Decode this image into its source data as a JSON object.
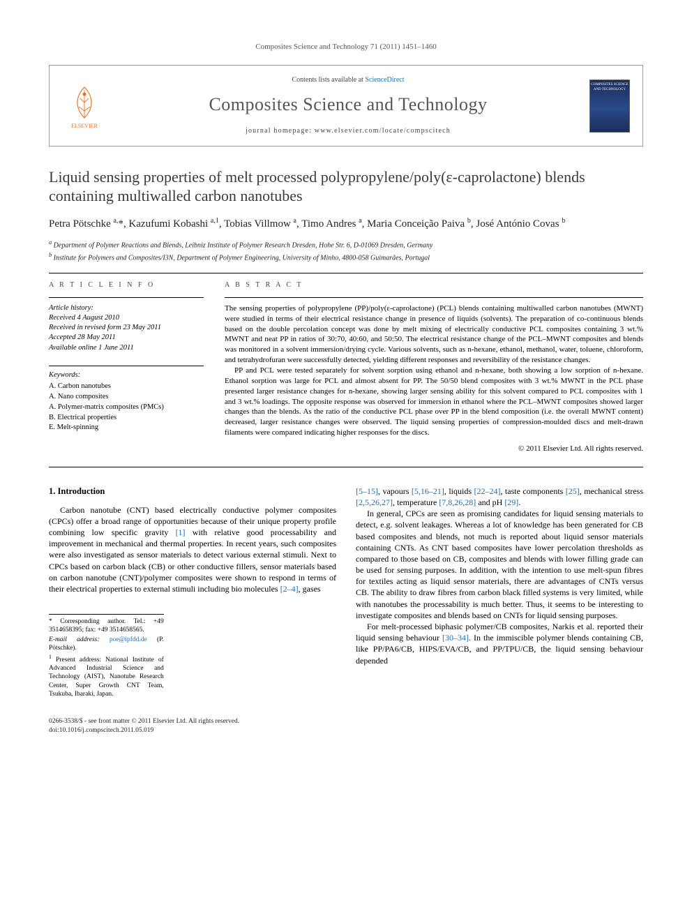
{
  "running_head": "Composites Science and Technology 71 (2011) 1451–1460",
  "header": {
    "contents_label": "Contents lists available at ",
    "contents_link": "ScienceDirect",
    "journal_title": "Composites Science and Technology",
    "homepage_label": "journal homepage: www.elsevier.com/locate/compscitech",
    "publisher_name": "ELSEVIER",
    "cover_text": "COMPOSITES SCIENCE AND TECHNOLOGY"
  },
  "article": {
    "title": "Liquid sensing properties of melt processed polypropylene/poly(ε-caprolactone) blends containing multiwalled carbon nanotubes",
    "authors_html": "Petra Pötschke <sup>a,</sup>*, Kazufumi Kobashi <sup>a,1</sup>, Tobias Villmow <sup>a</sup>, Timo Andres <sup>a</sup>, Maria Conceição Paiva <sup>b</sup>, José António Covas <sup>b</sup>",
    "affiliations": [
      "a Department of Polymer Reactions and Blends, Leibniz Institute of Polymer Research Dresden, Hohe Str. 6, D-01069 Dresden, Germany",
      "b Institute for Polymers and Composites/I3N, Department of Polymer Engineering, University of Minho, 4800-058 Guimarães, Portugal"
    ]
  },
  "info": {
    "article_info_label": "A R T I C L E   I N F O",
    "abstract_label": "A B S T R A C T",
    "history_head": "Article history:",
    "history": [
      "Received 4 August 2010",
      "Received in revised form 23 May 2011",
      "Accepted 28 May 2011",
      "Available online 1 June 2011"
    ],
    "keywords_head": "Keywords:",
    "keywords": [
      "A. Carbon nanotubes",
      "A. Nano composites",
      "A. Polymer-matrix composites (PMCs)",
      "B. Electrical properties",
      "E. Melt-spinning"
    ]
  },
  "abstract": {
    "p1": "The sensing properties of polypropylene (PP)/poly(ε-caprolactone) (PCL) blends containing multiwalled carbon nanotubes (MWNT) were studied in terms of their electrical resistance change in presence of liquids (solvents). The preparation of co-continuous blends based on the double percolation concept was done by melt mixing of electrically conductive PCL composites containing 3 wt.% MWNT and neat PP in ratios of 30:70, 40:60, and 50:50. The electrical resistance change of the PCL–MWNT composites and blends was monitored in a solvent immersion/drying cycle. Various solvents, such as n-hexane, ethanol, methanol, water, toluene, chloroform, and tetrahydrofuran were successfully detected, yielding different responses and reversibility of the resistance changes.",
    "p2": "PP and PCL were tested separately for solvent sorption using ethanol and n-hexane, both showing a low sorption of n-hexane. Ethanol sorption was large for PCL and almost absent for PP. The 50/50 blend composites with 3 wt.% MWNT in the PCL phase presented larger resistance changes for n-hexane, showing larger sensing ability for this solvent compared to PCL composites with 1 and 3 wt.% loadings. The opposite response was observed for immersion in ethanol where the PCL–MWNT composites showed larger changes than the blends. As the ratio of the conductive PCL phase over PP in the blend composition (i.e. the overall MWNT content) decreased, larger resistance changes were observed. The liquid sensing properties of compression-moulded discs and melt-drawn filaments were compared indicating higher responses for the discs.",
    "copyright": "© 2011 Elsevier Ltd. All rights reserved."
  },
  "body": {
    "heading": "1. Introduction",
    "col1": {
      "p1a": "Carbon nanotube (CNT) based electrically conductive polymer composites (CPCs) offer a broad range of opportunities because of their unique property profile combining low specific gravity ",
      "ref1": "[1]",
      "p1b": " with relative good processability and improvement in mechanical and thermal properties. In recent years, such composites were also investigated as sensor materials to detect various external stimuli. Next to CPCs based on carbon black (CB) or other conductive fillers, sensor materials based on carbon nanotube (CNT)/polymer composites were shown to respond in terms of their electrical properties to external stimuli including bio molecules ",
      "ref2": "[2–4]",
      "p1c": ", gases"
    },
    "col2": {
      "ref_a": "[5–15]",
      "t_a": ", vapours ",
      "ref_b": "[5,16–21]",
      "t_b": ", liquids ",
      "ref_c": "[22–24]",
      "t_c": ", taste components ",
      "ref_d": "[25]",
      "t_d": ", mechanical stress ",
      "ref_e": "[2,5,26,27]",
      "t_e": ", temperature ",
      "ref_f": "[7,8,26,28]",
      "t_f": " and pH ",
      "ref_g": "[29]",
      "t_g": ".",
      "p2": "In general, CPCs are seen as promising candidates for liquid sensing materials to detect, e.g. solvent leakages. Whereas a lot of knowledge has been generated for CB based composites and blends, not much is reported about liquid sensor materials containing CNTs. As CNT based composites have lower percolation thresholds as compared to those based on CB, composites and blends with lower filling grade can be used for sensing purposes. In addition, with the intention to use melt-spun fibres for textiles acting as liquid sensor materials, there are advantages of CNTs versus CB. The ability to draw fibres from carbon black filled systems is very limited, while with nanotubes the processability is much better. Thus, it seems to be interesting to investigate composites and blends based on CNTs for liquid sensing purposes.",
      "p3a": "For melt-processed biphasic polymer/CB composites, Narkis et al. reported their liquid sensing behaviour ",
      "ref_h": "[30–34]",
      "p3b": ". In the immiscible polymer blends containing CB, like PP/PA6/CB, HIPS/EVA/CB, and PP/TPU/CB, the liquid sensing behaviour depended"
    }
  },
  "footnotes": {
    "corr": "* Corresponding author. Tel.: +49 3514658395; fax: +49 3514658565.",
    "email_label": "E-mail address: ",
    "email": "poe@ipfdd.de",
    "email_tail": " (P. Pötschke).",
    "note1": "1  Present address: National Institute of Advanced Industrial Science and Technology (AIST), Nanotube Research Center, Super Growth CNT Team, Tsukuba, Ibaraki, Japan."
  },
  "footer": {
    "line1": "0266-3538/$ - see front matter © 2011 Elsevier Ltd. All rights reserved.",
    "line2": "doi:10.1016/j.compscitech.2011.05.019"
  },
  "colors": {
    "link": "#1a6fb3",
    "elsevier_orange": "#e9711c",
    "text_gray": "#555555"
  }
}
